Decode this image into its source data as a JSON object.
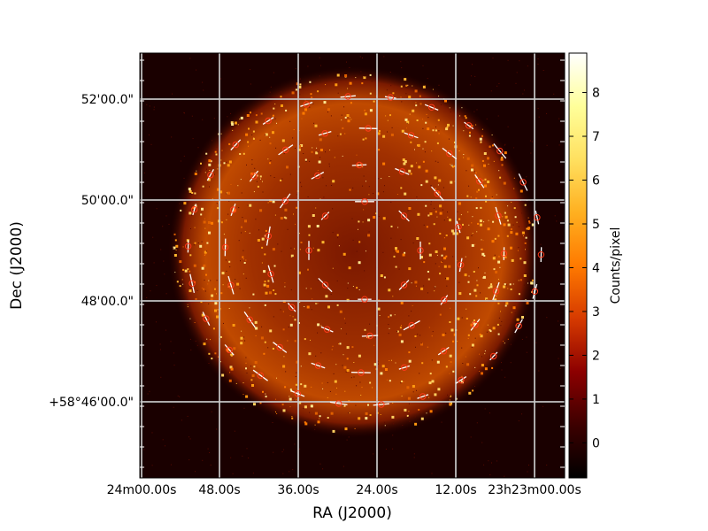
{
  "chart_data": {
    "type": "heatmap",
    "title": "",
    "xlabel": "RA (J2000)",
    "ylabel": "Dec (J2000)",
    "x_tick_labels": [
      "24m00.00s",
      "48.00s",
      "36.00s",
      "24.00s",
      "12.00s",
      "23h23m00.00s"
    ],
    "y_tick_labels": [
      "52'00.0\"",
      "50'00.0\"",
      "48'00.0\"",
      "+58°46'00.0\""
    ],
    "grid": true,
    "colorbar": {
      "label": "Counts/pixel",
      "ticks": [
        "0",
        "1",
        "2",
        "3",
        "4",
        "5",
        "6",
        "7",
        "8"
      ],
      "range": [
        -0.8,
        8.9
      ],
      "colormap": [
        "#000000",
        "#3d0000",
        "#8c0000",
        "#d63a00",
        "#ff7a00",
        "#ffb020",
        "#ffe060",
        "#ffff9a",
        "#ffffff"
      ]
    },
    "overlay": "polarization vectors (white) with circle markers (red)",
    "colors": {
      "background": "#1a0000",
      "emission": "#ff8a00",
      "vector": "#ffffff",
      "marker": "#ff3a1a",
      "grid": "#c8c8c8"
    }
  }
}
